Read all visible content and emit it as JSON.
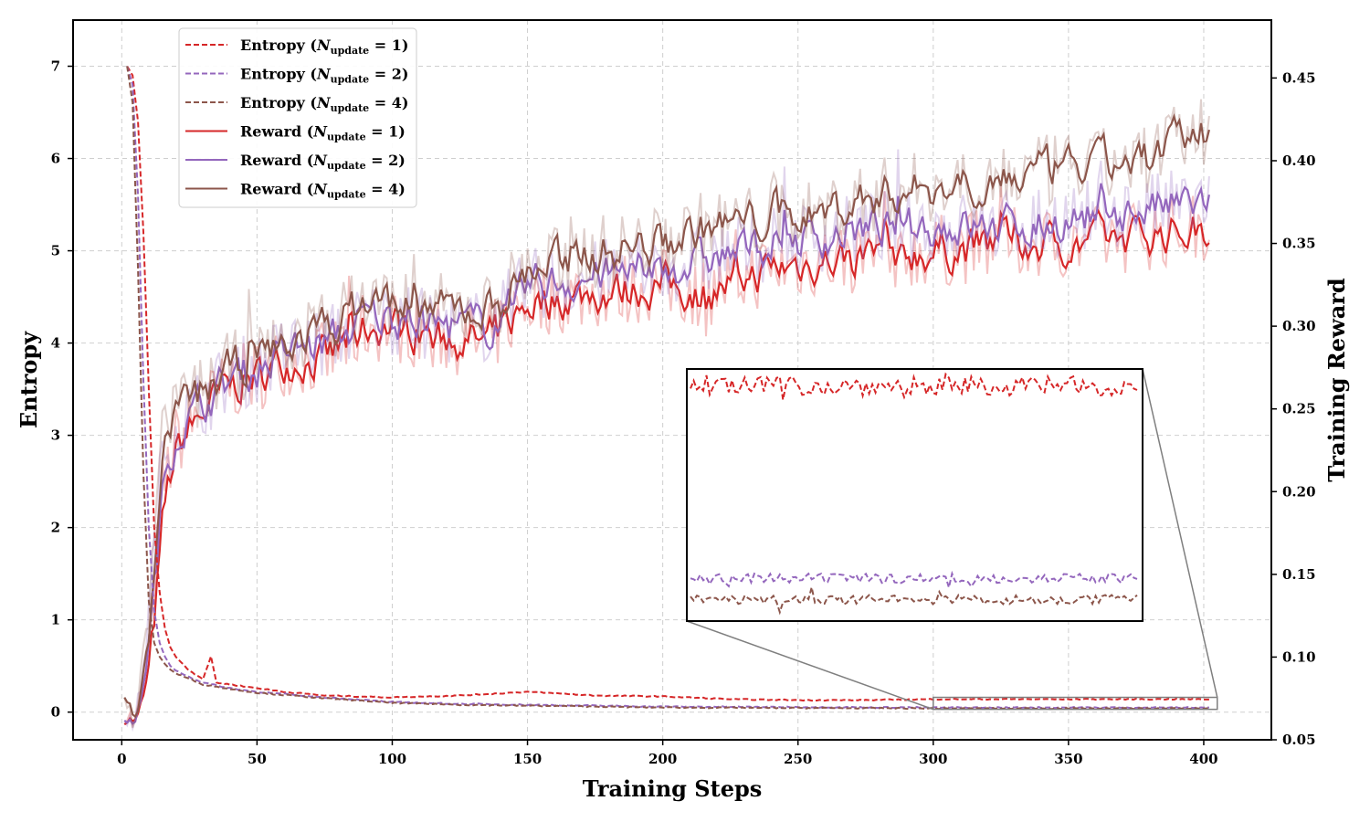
{
  "chart_data": {
    "type": "line",
    "title": "",
    "xlabel": "Training Steps",
    "ylabel_left": "Entropy",
    "ylabel_right": "Training Reward",
    "xlim": [
      -18,
      425
    ],
    "ylim_left": [
      -0.3,
      7.5
    ],
    "ylim_right": [
      0.05,
      0.485
    ],
    "xticks": [
      0,
      50,
      100,
      150,
      200,
      250,
      300,
      350,
      400
    ],
    "yticks_left": [
      0,
      1,
      2,
      3,
      4,
      5,
      6,
      7
    ],
    "yticks_right": [
      "0.05",
      "0.10",
      "0.15",
      "0.20",
      "0.25",
      "0.30",
      "0.35",
      "0.40",
      "0.45"
    ],
    "grid": true,
    "legend_position": "upper-left",
    "legend": [
      {
        "prefix": "Entropy (",
        "sub": "update",
        "suffix": " = 1)",
        "color": "#d62728",
        "style": "dashed"
      },
      {
        "prefix": "Entropy (",
        "sub": "update",
        "suffix": " = 2)",
        "color": "#9467bd",
        "style": "dashed"
      },
      {
        "prefix": "Entropy (",
        "sub": "update",
        "suffix": " = 4)",
        "color": "#8c564b",
        "style": "dashed"
      },
      {
        "prefix": "Reward (",
        "sub": "update",
        "suffix": " = 1)",
        "color": "#d62728",
        "style": "solid"
      },
      {
        "prefix": "Reward (",
        "sub": "update",
        "suffix": " = 2)",
        "color": "#9467bd",
        "style": "solid"
      },
      {
        "prefix": "Reward (",
        "sub": "update",
        "suffix": " = 4)",
        "color": "#8c564b",
        "style": "solid"
      }
    ],
    "legend_italic_n": "N",
    "entropy_series": [
      {
        "name": "Entropy (N_update = 1)",
        "color": "#d62728",
        "x": [
          2,
          4,
          6,
          8,
          10,
          12,
          14,
          16,
          18,
          20,
          25,
          30,
          33,
          35,
          40,
          50,
          60,
          75,
          100,
          125,
          150,
          175,
          200,
          225,
          250,
          275,
          300,
          325,
          350,
          375,
          402
        ],
        "y": [
          7.0,
          6.9,
          6.4,
          5.2,
          3.5,
          2.0,
          1.3,
          0.9,
          0.7,
          0.6,
          0.45,
          0.36,
          0.6,
          0.32,
          0.3,
          0.26,
          0.22,
          0.18,
          0.16,
          0.18,
          0.22,
          0.18,
          0.17,
          0.14,
          0.13,
          0.13,
          0.14,
          0.14,
          0.14,
          0.14,
          0.14
        ]
      },
      {
        "name": "Entropy (N_update = 2)",
        "color": "#9467bd",
        "x": [
          2,
          4,
          6,
          8,
          10,
          12,
          14,
          16,
          18,
          20,
          25,
          30,
          40,
          50,
          75,
          100,
          125,
          150,
          175,
          200,
          250,
          300,
          350,
          402
        ],
        "y": [
          7.0,
          6.8,
          5.6,
          3.6,
          2.0,
          1.1,
          0.75,
          0.6,
          0.5,
          0.45,
          0.38,
          0.32,
          0.26,
          0.22,
          0.16,
          0.11,
          0.09,
          0.08,
          0.07,
          0.06,
          0.055,
          0.05,
          0.05,
          0.05
        ]
      },
      {
        "name": "Entropy (N_update = 4)",
        "color": "#8c564b",
        "x": [
          2,
          4,
          6,
          8,
          10,
          12,
          14,
          16,
          18,
          20,
          25,
          30,
          40,
          50,
          75,
          100,
          125,
          150,
          175,
          200,
          250,
          300,
          350,
          402
        ],
        "y": [
          7.0,
          6.6,
          4.8,
          2.6,
          1.2,
          0.75,
          0.6,
          0.52,
          0.46,
          0.42,
          0.36,
          0.3,
          0.25,
          0.21,
          0.15,
          0.1,
          0.08,
          0.07,
          0.06,
          0.05,
          0.045,
          0.04,
          0.04,
          0.04
        ]
      }
    ],
    "reward_series": [
      {
        "name": "Reward (N_update = 1)",
        "color": "#d62728",
        "x": [
          1,
          5,
          10,
          15,
          20,
          30,
          40,
          50,
          60,
          75,
          90,
          100,
          115,
          135,
          150,
          175,
          200,
          215,
          240,
          260,
          280,
          300,
          325,
          350,
          375,
          402
        ],
        "y": [
          0.066,
          0.06,
          0.1,
          0.2,
          0.23,
          0.25,
          0.265,
          0.27,
          0.28,
          0.28,
          0.3,
          0.3,
          0.295,
          0.29,
          0.315,
          0.32,
          0.325,
          0.32,
          0.335,
          0.34,
          0.345,
          0.345,
          0.35,
          0.35,
          0.355,
          0.36
        ]
      },
      {
        "name": "Reward (N_update = 2)",
        "color": "#9467bd",
        "x": [
          1,
          5,
          10,
          15,
          20,
          30,
          40,
          50,
          60,
          75,
          90,
          100,
          115,
          135,
          150,
          175,
          200,
          215,
          240,
          260,
          280,
          300,
          325,
          350,
          375,
          402
        ],
        "y": [
          0.068,
          0.06,
          0.12,
          0.22,
          0.24,
          0.255,
          0.27,
          0.275,
          0.285,
          0.29,
          0.305,
          0.305,
          0.3,
          0.3,
          0.325,
          0.33,
          0.335,
          0.34,
          0.35,
          0.355,
          0.36,
          0.36,
          0.36,
          0.365,
          0.37,
          0.375
        ]
      },
      {
        "name": "Reward (N_update = 4)",
        "color": "#8c564b",
        "x": [
          1,
          5,
          10,
          15,
          20,
          30,
          40,
          50,
          60,
          75,
          90,
          100,
          115,
          135,
          150,
          175,
          200,
          215,
          240,
          260,
          280,
          300,
          325,
          350,
          375,
          402
        ],
        "y": [
          0.07,
          0.06,
          0.13,
          0.23,
          0.25,
          0.26,
          0.275,
          0.28,
          0.29,
          0.3,
          0.315,
          0.315,
          0.31,
          0.31,
          0.335,
          0.345,
          0.35,
          0.36,
          0.365,
          0.37,
          0.38,
          0.385,
          0.39,
          0.395,
          0.4,
          0.42
        ]
      }
    ],
    "inset": {
      "source_x_range": [
        300,
        405
      ],
      "source_y_range": [
        0.03,
        0.16
      ],
      "series": [
        {
          "name": "Entropy (N_update = 1)",
          "color": "#d62728",
          "level": 0.14
        },
        {
          "name": "Entropy (N_update = 2)",
          "color": "#9467bd",
          "level": 0.05
        },
        {
          "name": "Entropy (N_update = 4)",
          "color": "#8c564b",
          "level": 0.04
        }
      ]
    }
  }
}
